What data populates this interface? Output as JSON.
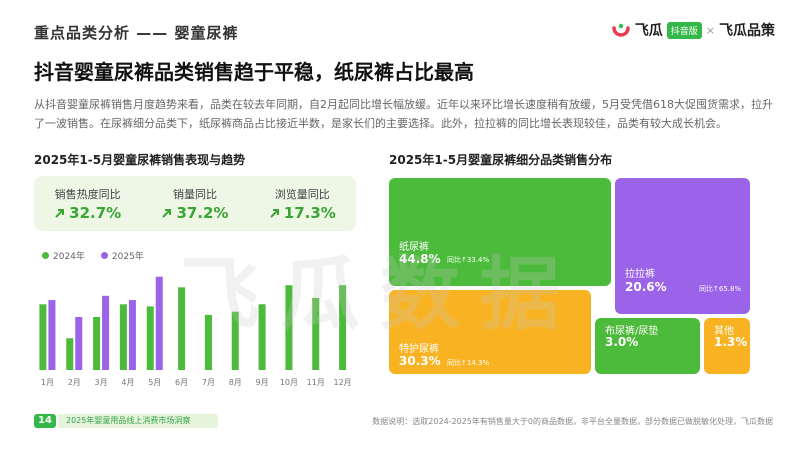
{
  "header": {
    "section_title": "重点品类分析 —— 婴童尿裤",
    "brand_name": "飞瓜",
    "brand_tag": "抖音版",
    "brand_sep": "×",
    "brand_name2": "飞瓜品策"
  },
  "main_title": "抖音婴童尿裤品类销售趋于平稳，纸尿裤占比最高",
  "description": "从抖音婴童尿裤销售月度趋势来看，品类在较去年同期，自2月起同比增长幅放缓。近年以来环比增长速度稍有放缓，5月受凭借618大促囤货需求，拉升了一波销售。在尿裤细分品类下，纸尿裤商品占比接近半数，是家长们的主要选择。此外，拉拉裤的同比增长表现较佳，品类有较大成长机会。",
  "left_title": "2025年1-5月婴童尿裤销售表现与趋势",
  "right_title": "2025年1-5月婴童尿裤细分品类销售分布",
  "kpis": [
    {
      "label": "销售热度同比",
      "value": "32.7%"
    },
    {
      "label": "销量同比",
      "value": "37.2%"
    },
    {
      "label": "浏览量同比",
      "value": "17.3%"
    }
  ],
  "colors": {
    "green": "#4cba3a",
    "purple": "#9a63e8",
    "orange": "#f9b322",
    "kpi_bg": "#eef7e6"
  },
  "chart_data": [
    {
      "type": "bar",
      "categories": [
        "1月",
        "2月",
        "3月",
        "4月",
        "5月",
        "6月",
        "7月",
        "8月",
        "9月",
        "10月",
        "11月",
        "12月"
      ],
      "series": [
        {
          "name": "2024年",
          "values": [
            62,
            30,
            50,
            62,
            60,
            78,
            52,
            55,
            62,
            80,
            68,
            80
          ]
        },
        {
          "name": "2025年",
          "values": [
            66,
            50,
            70,
            66,
            88,
            null,
            null,
            null,
            null,
            null,
            null,
            null
          ]
        }
      ],
      "ylim": [
        0,
        100
      ],
      "legend": "top-left"
    },
    {
      "type": "treemap",
      "items": [
        {
          "name": "纸尿裤",
          "share": 44.8,
          "share_label": "44.8%",
          "yoy_label": "同比↑33.4%"
        },
        {
          "name": "拉拉裤",
          "share": 20.6,
          "share_label": "20.6%",
          "yoy_label": "同比↑65.8%"
        },
        {
          "name": "特护尿裤",
          "share": 30.3,
          "share_label": "30.3%",
          "yoy_label": "同比↑14.3%"
        },
        {
          "name": "布尿裤/尿垫",
          "share": 3.0,
          "share_label": "3.0%",
          "yoy_label": ""
        },
        {
          "name": "其他",
          "share": 1.3,
          "share_label": "1.3%",
          "yoy_label": ""
        }
      ]
    }
  ],
  "watermark": "飞瓜数据",
  "footer": {
    "page_num": "14",
    "report_name": "2025年婴童用品线上消费市场洞察",
    "note": "数据说明：选取2024-2025年有销售量大于0的商品数据，非平台全量数据，部分数据已做脱敏化处理，飞瓜数据"
  }
}
